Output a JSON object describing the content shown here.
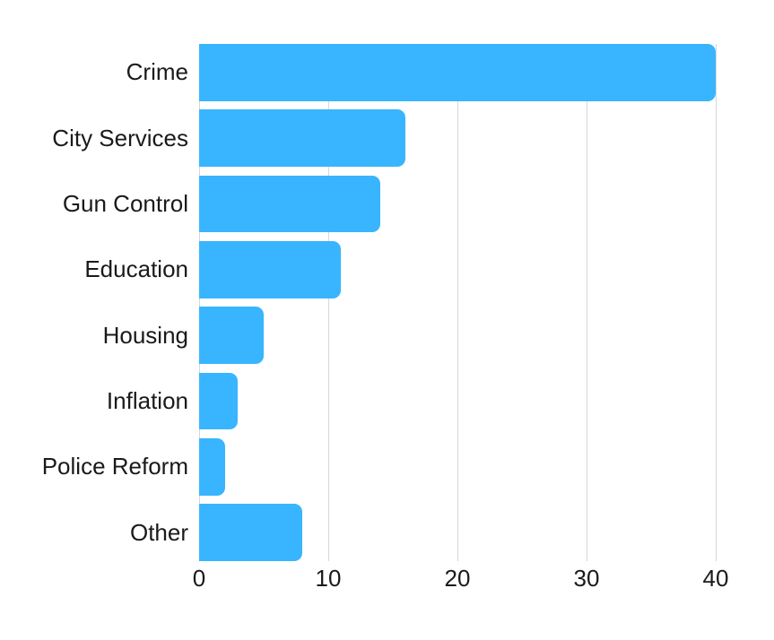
{
  "chart_data": {
    "type": "bar",
    "orientation": "horizontal",
    "title": "",
    "xlabel": "",
    "ylabel": "",
    "categories": [
      "Crime",
      "City Services",
      "Gun Control",
      "Education",
      "Housing",
      "Inflation",
      "Police Reform",
      "Other"
    ],
    "values": [
      40,
      16,
      14,
      11,
      5,
      3,
      2,
      8
    ],
    "xlim": [
      0,
      40
    ],
    "x_ticks": [
      0,
      10,
      20,
      30,
      40
    ],
    "grid": "vertical-gridlines",
    "legend": "none",
    "colors": {
      "bar": "#38b5fe",
      "gridline": "#d7d7d7",
      "text": "#1a1a1a",
      "background": "#ffffff"
    }
  }
}
